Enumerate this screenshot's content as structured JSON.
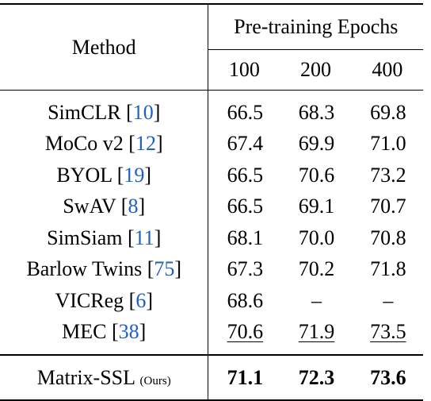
{
  "table": {
    "header": {
      "method_label": "Method",
      "group_label": "Pre-training Epochs",
      "epochs": [
        "100",
        "200",
        "400"
      ]
    },
    "rows": [
      {
        "method": "SimCLR",
        "cite": "10",
        "values": [
          "66.5",
          "68.3",
          "69.8"
        ]
      },
      {
        "method": "MoCo v2",
        "cite": "12",
        "values": [
          "67.4",
          "69.9",
          "71.0"
        ]
      },
      {
        "method": "BYOL",
        "cite": "19",
        "values": [
          "66.5",
          "70.6",
          "73.2"
        ]
      },
      {
        "method": "SwAV",
        "cite": "8",
        "values": [
          "66.5",
          "69.1",
          "70.7"
        ]
      },
      {
        "method": "SimSiam",
        "cite": "11",
        "values": [
          "68.1",
          "70.0",
          "70.8"
        ]
      },
      {
        "method": "Barlow Twins",
        "cite": "75",
        "values": [
          "67.3",
          "70.2",
          "71.8"
        ]
      },
      {
        "method": "VICReg",
        "cite": "6",
        "values": [
          "68.6",
          "–",
          "–"
        ]
      },
      {
        "method": "MEC",
        "cite": "38",
        "values": [
          "70.6",
          "71.9",
          "73.5"
        ]
      }
    ],
    "ours": {
      "method": "Matrix-SSL",
      "tag": "(Ours)",
      "values": [
        "71.1",
        "72.3",
        "73.6"
      ]
    }
  }
}
